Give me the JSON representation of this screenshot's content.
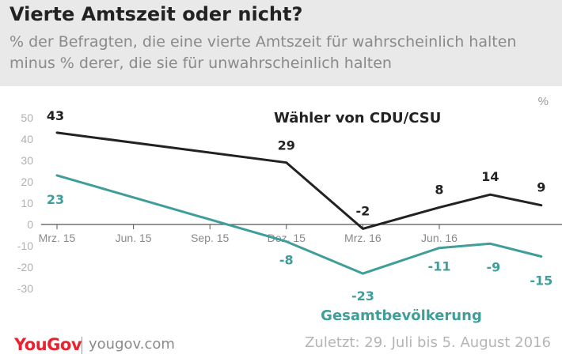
{
  "header": {
    "title": "Vierte Amtszeit oder nicht?",
    "subtitle": "% der Befragten, die eine vierte Amtszeit für wahrscheinlich halten minus % derer, die sie für unwahrscheinlich halten"
  },
  "chart_data": {
    "type": "line",
    "unit_label": "%",
    "x": [
      0,
      9,
      12,
      15,
      17,
      19
    ],
    "x_ticks": [
      {
        "x": 0,
        "label": "Mrz. 15"
      },
      {
        "x": 3,
        "label": "Jun. 15"
      },
      {
        "x": 6,
        "label": "Sep. 15"
      },
      {
        "x": 9,
        "label": "Dez. 15"
      },
      {
        "x": 12,
        "label": "Mrz. 16"
      },
      {
        "x": 15,
        "label": "Jun. 16"
      }
    ],
    "xlim": [
      -1,
      20
    ],
    "ylim": [
      -30,
      50
    ],
    "y_ticks": [
      50,
      40,
      30,
      20,
      10,
      0,
      -10,
      -20,
      -30
    ],
    "grid": false,
    "series": [
      {
        "name": "Wähler von CDU/CSU",
        "color": "#222222",
        "values": [
          43,
          29,
          -2,
          8,
          14,
          9
        ],
        "labels": [
          "43",
          "29",
          "-2",
          "8",
          "14",
          "9"
        ]
      },
      {
        "name": "Gesamtbevölkerung",
        "color": "#3f9e99",
        "values": [
          23,
          -8,
          -23,
          -11,
          -9,
          -15
        ],
        "labels": [
          "23",
          "-8",
          "-23",
          "-11",
          "-9",
          "-15"
        ]
      }
    ]
  },
  "footer": {
    "brand": "YouGov",
    "url": "yougov.com",
    "note": "Zuletzt: 29. Juli bis 5. August 2016"
  }
}
